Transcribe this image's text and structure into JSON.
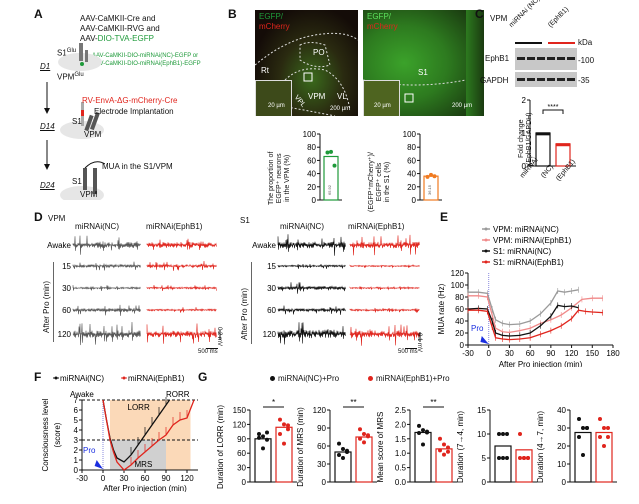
{
  "panelA": {
    "label": "A",
    "virus_lines": [
      "AAV-CaMKII-Cre and",
      "AAV-CaMKII-RVG and",
      "AAV-"
    ],
    "virus_green": "DIO-TVA-EGFP",
    "s1glu": "S1",
    "glu_sup": "Glu",
    "vpmglu": "VPM",
    "mirna_nc": "AAV-CaMKII-DIO-miRNAi(NC)-EGFP or",
    "mirna_ephb1": "AAV-CaMKII-DIO-miRNAi(EphB1)-EGFP",
    "day1": "D1",
    "rv": "RV-EnvA-ΔG-mCherry-Cre",
    "electrode": "Electrode Implantation",
    "day14": "D14",
    "s1": "S1",
    "vpm": "VPM",
    "mua": "MUA in the S1/VPM",
    "day24": "D24"
  },
  "panelB": {
    "label": "B",
    "egfp": "EGFP/",
    "mcherry": "mCherry",
    "regions": {
      "po": "PO",
      "rt": "Rt",
      "vpm": "VPM",
      "vl": "VL",
      "vpl": "VPL",
      "s1": "S1"
    },
    "scale_inset": "20 µm",
    "scale_main": "200 µm",
    "chart_left": {
      "ylabel_lines": [
        "The proportion of",
        "EGFP⁺ neurons",
        "in the VPM (%)"
      ],
      "value_label": "65.92"
    },
    "chart_right": {
      "ylabel_lines": [
        "(EGFP⁺mCherry⁺)/",
        "EGFP⁺ cells",
        "in the S1 (%)"
      ],
      "value_label": "36.15"
    }
  },
  "panelC": {
    "label": "C",
    "region": "VPM",
    "lane_group1": "miRNAi (NC)",
    "lane_group2": "(EphB1)",
    "kda": "kDa",
    "band1": "EphB1",
    "band2": "GAPDH",
    "mw1": "-100",
    "mw2": "-35",
    "significance": "****"
  },
  "panelD": {
    "label": "D",
    "vpm_title": "VPM",
    "s1_title": "S1",
    "col_nc": "miRNAi(NC)",
    "col_ephb1": "miRNAi(EphB1)",
    "rows": [
      "Awake",
      "15",
      "30",
      "60",
      "120"
    ],
    "axis_label": "After Pro (min)",
    "scale_time": "500 ms",
    "scale_vpm": "0.2 mV",
    "scale_s1": "0.1 mV"
  },
  "panelE": {
    "label": "E",
    "pro": "Pro"
  },
  "panelF": {
    "label": "F",
    "awake": "Awake",
    "rorr": "RORR",
    "lorr": "LORR",
    "mrs": "MRS",
    "pro": "Pro"
  },
  "panelG": {
    "label": "G",
    "legend_nc": "miRNAi(NC)+Pro",
    "legend_ephb1": "miRNAi(EphB1)+Pro"
  },
  "colors": {
    "nc": "#111111",
    "ephb1": "#e0251d",
    "vpm_nc": "#9a9a9a",
    "vpm_ephb1": "#f08a8a",
    "green": "#1e9a3a",
    "orange": "#f07a20",
    "pro_blue": "#1a2ee0"
  },
  "chart_data": [
    {
      "id": "B-left",
      "type": "bar",
      "categories": [
        ""
      ],
      "values": [
        65.92
      ],
      "points": [
        72,
        73,
        52
      ],
      "ylabel": "The proportion of EGFP+ neurons in the VPM (%)",
      "ylim": [
        0,
        100
      ],
      "yticks": [
        0,
        20,
        40,
        60,
        80,
        100
      ]
    },
    {
      "id": "B-right",
      "type": "bar",
      "categories": [
        ""
      ],
      "values": [
        36.15
      ],
      "points": [
        35,
        38,
        36
      ],
      "ylabel": "(EGFP+mCherry+)/EGFP+ cells in the S1 (%)",
      "ylim": [
        0,
        100
      ],
      "yticks": [
        0,
        20,
        40,
        60,
        80,
        100
      ]
    },
    {
      "id": "C",
      "type": "bar",
      "categories": [
        "miRNAi (NC)",
        "(EphB1)"
      ],
      "values": [
        1.0,
        0.67
      ],
      "ylabel": "Fold change (EphB1/GAPDH)",
      "ylim": [
        0,
        2
      ],
      "yticks": [
        0,
        1,
        2
      ],
      "annotation": "****"
    },
    {
      "id": "E",
      "type": "line",
      "xlabel": "After Pro injection (min)",
      "ylabel": "MUA rate (Hz)",
      "xlim": [
        -30,
        180
      ],
      "ylim": [
        0,
        120
      ],
      "xticks": [
        -30,
        0,
        30,
        60,
        90,
        120,
        150,
        180
      ],
      "yticks": [
        0,
        20,
        40,
        60,
        80,
        100,
        120
      ],
      "legend_position": "top",
      "series": [
        {
          "name": "VPM: miRNAi(NC)",
          "x": [
            -30,
            -15,
            -2,
            5,
            10,
            20,
            30,
            45,
            60,
            75,
            90,
            100,
            110,
            120,
            130
          ],
          "y": [
            88,
            88,
            86,
            60,
            42,
            36,
            34,
            35,
            40,
            52,
            70,
            90,
            88,
            90,
            92
          ]
        },
        {
          "name": "VPM: miRNAi(EphB1)",
          "x": [
            -30,
            -15,
            -2,
            5,
            10,
            20,
            30,
            45,
            60,
            75,
            90,
            105,
            120,
            135,
            150,
            165
          ],
          "y": [
            82,
            82,
            80,
            50,
            28,
            22,
            21,
            24,
            28,
            36,
            42,
            50,
            62,
            76,
            78,
            78
          ]
        },
        {
          "name": "S1: miRNAi(NC)",
          "x": [
            -30,
            -15,
            -2,
            5,
            10,
            20,
            30,
            45,
            60,
            75,
            90,
            100,
            110,
            120,
            130
          ],
          "y": [
            60,
            61,
            60,
            40,
            20,
            16,
            15,
            16,
            20,
            32,
            48,
            66,
            64,
            65,
            62
          ]
        },
        {
          "name": "S1: miRNAi(EphB1)",
          "x": [
            -30,
            -15,
            -2,
            5,
            10,
            20,
            30,
            45,
            60,
            75,
            90,
            105,
            120,
            130,
            140,
            150,
            165
          ],
          "y": [
            58,
            58,
            56,
            30,
            12,
            10,
            9,
            10,
            12,
            18,
            24,
            32,
            44,
            58,
            56,
            55,
            54
          ]
        }
      ],
      "annotation": "Pro"
    },
    {
      "id": "F",
      "type": "line",
      "xlabel": "After Pro injection (min)",
      "ylabel": "Consciousness level (score)",
      "xlim": [
        -30,
        150
      ],
      "ylim": [
        0,
        7
      ],
      "xticks": [
        -30,
        0,
        30,
        60,
        90,
        120,
        150
      ],
      "yticks": [
        0,
        1,
        2,
        3,
        4,
        5,
        6,
        7
      ],
      "series": [
        {
          "name": "miRNAi(NC)",
          "x": [
            0,
            5,
            10,
            15,
            20,
            30,
            40,
            50,
            60,
            70,
            80,
            90,
            95
          ],
          "y": [
            7,
            5,
            3.2,
            2,
            1.2,
            0.8,
            1.5,
            2.5,
            3.5,
            4.5,
            5.5,
            6.5,
            7
          ]
        },
        {
          "name": "miRNAi(EphB1)",
          "x": [
            0,
            5,
            10,
            15,
            20,
            30,
            40,
            50,
            60,
            70,
            80,
            90,
            100,
            110,
            120,
            130
          ],
          "y": [
            7,
            5,
            3,
            1.8,
            0.8,
            0,
            0.5,
            1.2,
            1.8,
            2.4,
            3,
            3.5,
            4.5,
            5,
            5.2,
            7
          ]
        }
      ],
      "shaded_regions": [
        {
          "name": "LORR",
          "x": [
            10,
            125
          ],
          "y": [
            0,
            7
          ]
        },
        {
          "name": "MRS",
          "x": [
            10,
            90
          ],
          "y": [
            0,
            3
          ]
        }
      ],
      "hlines": [
        7,
        3
      ],
      "annotations": [
        "Awake",
        "RORR",
        "LORR",
        "MRS",
        "Pro"
      ]
    },
    {
      "id": "G1",
      "type": "bar",
      "categories": [
        "miRNAi(NC)+Pro",
        "miRNAi(EphB1)+Pro"
      ],
      "values": [
        90,
        114
      ],
      "ylabel": "Duration of LORR (min)",
      "ylim": [
        0,
        150
      ],
      "yticks": [
        0,
        30,
        60,
        90,
        120,
        150
      ],
      "points": [
        [
          100,
          95,
          88,
          92,
          70,
          103
        ],
        [
          130,
          120,
          110,
          100,
          80,
          118
        ]
      ],
      "annotation": "*"
    },
    {
      "id": "G2",
      "type": "bar",
      "categories": [
        "miRNAi(NC)+Pro",
        "miRNAi(EphB1)+Pro"
      ],
      "values": [
        50,
        75
      ],
      "ylabel": "Duration of MRS (min)",
      "ylim": [
        0,
        120
      ],
      "yticks": [
        0,
        30,
        60,
        90,
        120
      ],
      "points": [
        [
          64,
          55,
          50,
          45,
          40,
          52
        ],
        [
          88,
          80,
          76,
          72,
          66,
          78
        ]
      ],
      "annotation": "**"
    },
    {
      "id": "G3",
      "type": "bar",
      "categories": [
        "miRNAi(NC)+Pro",
        "miRNAi(EphB1)+Pro"
      ],
      "values": [
        1.72,
        1.15
      ],
      "ylabel": "Mean score of MRS",
      "ylim": [
        0,
        2.5
      ],
      "yticks": [
        0.0,
        0.5,
        1.0,
        1.5,
        2.0,
        2.5
      ],
      "points": [
        [
          1.95,
          1.8,
          1.72,
          1.7,
          1.3,
          1.75
        ],
        [
          1.5,
          1.3,
          1.2,
          1.1,
          0.95,
          1.05
        ]
      ],
      "annotation": "**"
    },
    {
      "id": "G4",
      "type": "bar",
      "categories": [
        "miRNAi(NC)+Pro",
        "miRNAi(EphB1)+Pro"
      ],
      "values": [
        7.5,
        6.7
      ],
      "ylabel": "Duration (7→4, min)",
      "ylim": [
        0,
        15
      ],
      "yticks": [
        0,
        5,
        10,
        15
      ],
      "points": [
        [
          10,
          10,
          10,
          5,
          5,
          5
        ],
        [
          10,
          5,
          5,
          5,
          5,
          5
        ]
      ]
    },
    {
      "id": "G5",
      "type": "bar",
      "categories": [
        "miRNAi(NC)+Pro",
        "miRNAi(EphB1)+Pro"
      ],
      "values": [
        27.5,
        27.5
      ],
      "ylabel": "Duration (4→7, min)",
      "ylim": [
        0,
        40
      ],
      "yticks": [
        0,
        10,
        20,
        30,
        40
      ],
      "points": [
        [
          35,
          30,
          30,
          25,
          15,
          30
        ],
        [
          35,
          30,
          30,
          25,
          20,
          25
        ]
      ]
    }
  ]
}
